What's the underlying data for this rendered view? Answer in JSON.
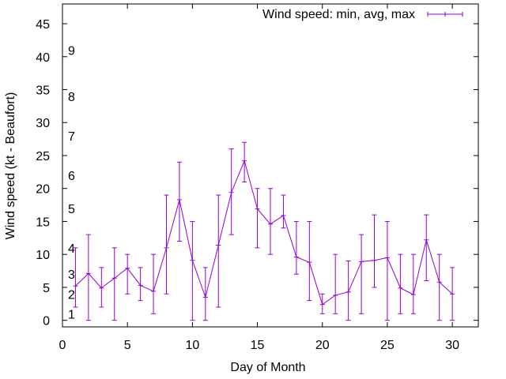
{
  "chart_data": {
    "type": "line",
    "xlabel": "Day of Month",
    "ylabel": "Wind speed (kt - Beaufort)",
    "xlim": [
      0,
      32
    ],
    "ylim": [
      -1,
      48
    ],
    "xticks": [
      0,
      5,
      10,
      15,
      20,
      25,
      30
    ],
    "yticks": [
      0,
      5,
      10,
      15,
      20,
      25,
      30,
      35,
      40,
      45
    ],
    "grid": false,
    "legend_position": "top-right",
    "series": [
      {
        "name": "Wind speed: min, avg, max",
        "color": "#9400d3",
        "x": [
          1,
          2,
          3,
          4,
          5,
          6,
          7,
          8,
          9,
          10,
          11,
          12,
          13,
          14,
          15,
          16,
          17,
          18,
          19,
          20,
          21,
          22,
          23,
          24,
          25,
          26,
          27,
          28,
          29,
          30
        ],
        "avg": [
          5.2,
          7.1,
          4.9,
          6.4,
          7.9,
          5.3,
          4.4,
          11,
          18.3,
          9.1,
          3.5,
          11.4,
          19.4,
          24.2,
          16.9,
          14.6,
          15.9,
          9.6,
          8.8,
          2.4,
          3.8,
          4.3,
          8.9,
          9.1,
          9.5,
          4.9,
          3.9,
          12.2,
          5.8,
          4
        ],
        "min": [
          2,
          0,
          2,
          0,
          4,
          3,
          1,
          4,
          12,
          0,
          0,
          2,
          13,
          21,
          11,
          10,
          14,
          7,
          3,
          1,
          1,
          0,
          1,
          5,
          0,
          1,
          1,
          6,
          0,
          0
        ],
        "max": [
          11,
          13,
          8,
          11,
          10,
          8,
          10,
          19,
          24,
          15,
          8,
          19,
          26,
          27,
          20,
          20,
          19,
          15,
          15,
          4,
          10,
          9,
          13,
          16,
          15,
          10,
          10,
          16,
          10,
          8
        ]
      }
    ],
    "beaufort_labels": [
      {
        "label": "1",
        "y": 1
      },
      {
        "label": "2",
        "y": 4
      },
      {
        "label": "3",
        "y": 7
      },
      {
        "label": "4",
        "y": 11
      },
      {
        "label": "5",
        "y": 17
      },
      {
        "label": "6",
        "y": 22
      },
      {
        "label": "7",
        "y": 28
      },
      {
        "label": "8",
        "y": 34
      },
      {
        "label": "9",
        "y": 41
      }
    ]
  }
}
